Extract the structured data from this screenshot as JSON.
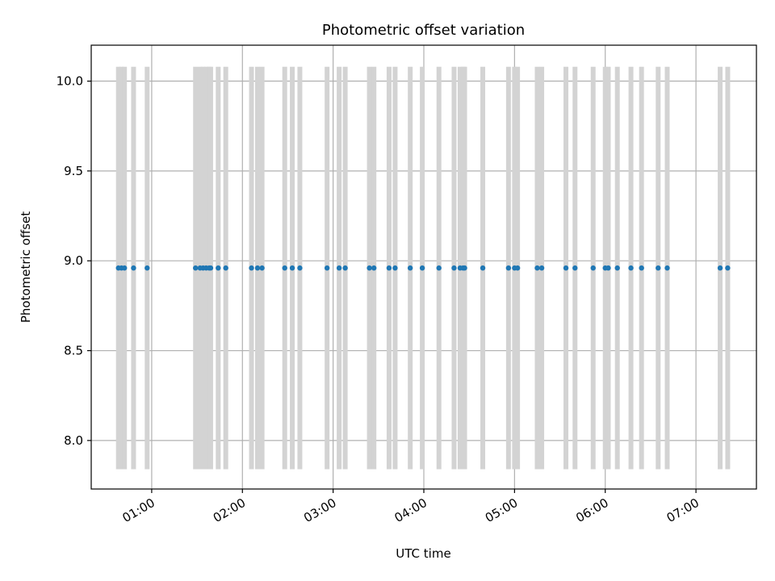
{
  "chart_data": {
    "type": "scatter",
    "title": "Photometric offset variation",
    "xlabel": "UTC time",
    "ylabel": "Photometric offset",
    "x_unit": "UTC time of day",
    "xlim": [
      "00:20",
      "07:40"
    ],
    "ylim": [
      7.73,
      10.2
    ],
    "x_ticks": [
      "01:00",
      "02:00",
      "03:00",
      "04:00",
      "05:00",
      "06:00",
      "07:00"
    ],
    "y_ticks": [
      "8.0",
      "8.5",
      "9.0",
      "9.5",
      "10.0"
    ],
    "grid": true,
    "legend": "none",
    "colors": {
      "points": "#1f77b4",
      "error_bars": "#d3d3d3",
      "grid": "#b0b0b0",
      "axes": "#000000"
    },
    "series": [
      {
        "x": [
          "00:38",
          "00:40",
          "00:42",
          "00:48",
          "00:57",
          "01:29",
          "01:32",
          "01:34",
          "01:36",
          "01:38",
          "01:39",
          "01:44",
          "01:49",
          "02:06",
          "02:10",
          "02:13",
          "02:28",
          "02:33",
          "02:38",
          "02:56",
          "03:04",
          "03:08",
          "03:24",
          "03:27",
          "03:37",
          "03:41",
          "03:51",
          "03:59",
          "04:10",
          "04:20",
          "04:24",
          "04:26",
          "04:27",
          "04:39",
          "04:56",
          "05:00",
          "05:02",
          "05:15",
          "05:18",
          "05:34",
          "05:40",
          "05:52",
          "06:00",
          "06:02",
          "06:08",
          "06:17",
          "06:24",
          "06:35",
          "06:41",
          "07:16",
          "07:21"
        ],
        "y": [
          8.96,
          8.96,
          8.96,
          8.96,
          8.96,
          8.96,
          8.96,
          8.96,
          8.96,
          8.96,
          8.96,
          8.96,
          8.96,
          8.96,
          8.96,
          8.96,
          8.96,
          8.96,
          8.96,
          8.96,
          8.96,
          8.96,
          8.96,
          8.96,
          8.96,
          8.96,
          8.96,
          8.96,
          8.96,
          8.96,
          8.96,
          8.96,
          8.96,
          8.96,
          8.96,
          8.96,
          8.96,
          8.96,
          8.96,
          8.96,
          8.96,
          8.96,
          8.96,
          8.96,
          8.96,
          8.96,
          8.96,
          8.96,
          8.96,
          8.96,
          8.96
        ],
        "y_error": 1.12
      }
    ]
  }
}
